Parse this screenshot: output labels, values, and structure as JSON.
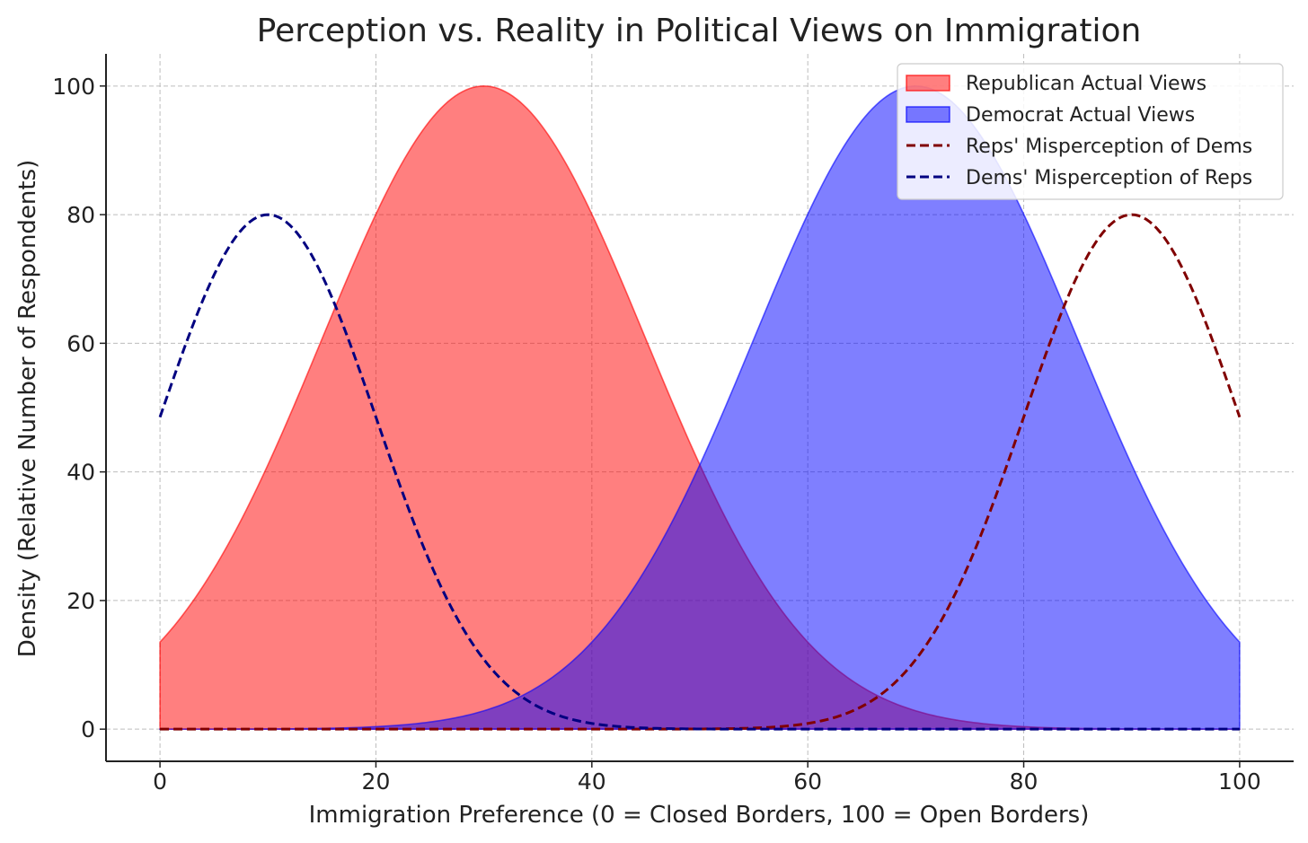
{
  "chart_data": {
    "type": "area",
    "title": "Perception vs. Reality in Political Views on Immigration",
    "xlabel": "Immigration Preference (0 = Closed Borders, 100 = Open Borders)",
    "ylabel": "Density (Relative Number of Respondents)",
    "xlim": [
      -5,
      105
    ],
    "ylim": [
      -5,
      105
    ],
    "xticks": [
      0,
      20,
      40,
      60,
      80,
      100
    ],
    "yticks": [
      0,
      20,
      40,
      60,
      80,
      100
    ],
    "grid": true,
    "legend_position": "top-right",
    "x_range": [
      0,
      100
    ],
    "series": [
      {
        "name": "Republican Actual Views",
        "style": "filled-area",
        "distribution": "gaussian",
        "mean": 30,
        "std": 15,
        "peak": 100,
        "color": "#ff0000",
        "opacity": 0.5,
        "x": [
          0,
          10,
          20,
          30,
          40,
          50,
          60,
          70,
          80,
          90,
          100
        ],
        "values": [
          10.5,
          41.1,
          80.1,
          100,
          80.1,
          41.1,
          13.5,
          2.9,
          0.4,
          0.03,
          0.002
        ]
      },
      {
        "name": "Democrat Actual Views",
        "style": "filled-area",
        "distribution": "gaussian",
        "mean": 70,
        "std": 15,
        "peak": 100,
        "color": "#0000ff",
        "opacity": 0.5,
        "x": [
          0,
          10,
          20,
          30,
          40,
          50,
          60,
          70,
          80,
          90,
          100
        ],
        "values": [
          0.002,
          0.03,
          0.4,
          2.9,
          13.5,
          41.1,
          80.1,
          100,
          80.1,
          41.1,
          10.5
        ]
      },
      {
        "name": "Reps' Misperception of Dems",
        "style": "dashed-line",
        "distribution": "gaussian",
        "mean": 90,
        "std": 10,
        "peak": 80,
        "color": "#800000",
        "x": [
          0,
          10,
          20,
          30,
          40,
          50,
          60,
          70,
          80,
          90,
          100
        ],
        "values": [
          0,
          0,
          0,
          0,
          0,
          0.03,
          0.9,
          10.8,
          48.5,
          80,
          48.5
        ]
      },
      {
        "name": "Dems' Misperception of Reps",
        "style": "dashed-line",
        "distribution": "gaussian",
        "mean": 10,
        "std": 10,
        "peak": 80,
        "color": "#000080",
        "x": [
          0,
          10,
          20,
          30,
          40,
          50,
          60,
          70,
          80,
          90,
          100
        ],
        "values": [
          48.5,
          80,
          48.5,
          10.8,
          0.9,
          0.03,
          0,
          0,
          0,
          0,
          0
        ]
      }
    ]
  }
}
